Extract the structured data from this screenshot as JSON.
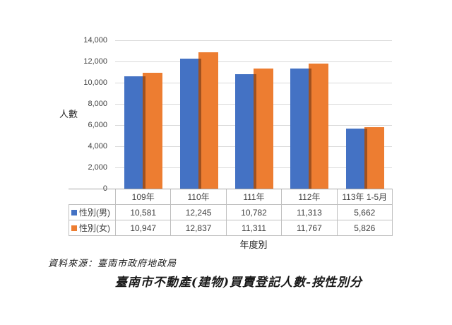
{
  "chart_data": {
    "type": "bar",
    "title": "臺南市不動產(建物)買賣登記人數-按性別分",
    "categories": [
      "109年",
      "110年",
      "111年",
      "112年",
      "113年 1-5月"
    ],
    "series": [
      {
        "name": "性別(男)",
        "color": "#4472C4",
        "values": [
          10581,
          12245,
          10782,
          11313,
          5662
        ]
      },
      {
        "name": "性別(女)",
        "color": "#ED7D31",
        "values": [
          10947,
          12837,
          11311,
          11767,
          5826
        ]
      }
    ],
    "ylabel": "人數",
    "xlabel": "年度別",
    "ylim": [
      0,
      14000
    ],
    "ytick_interval": 2000,
    "grid": true,
    "legend_position": "data-table-row-headers",
    "bar_overlap_color": "#A0511F",
    "gridline_color": "#D9D9D9",
    "table_border_color": "#BFBFBF"
  },
  "footer": {
    "source": "資料來源：臺南市政府地政局"
  }
}
